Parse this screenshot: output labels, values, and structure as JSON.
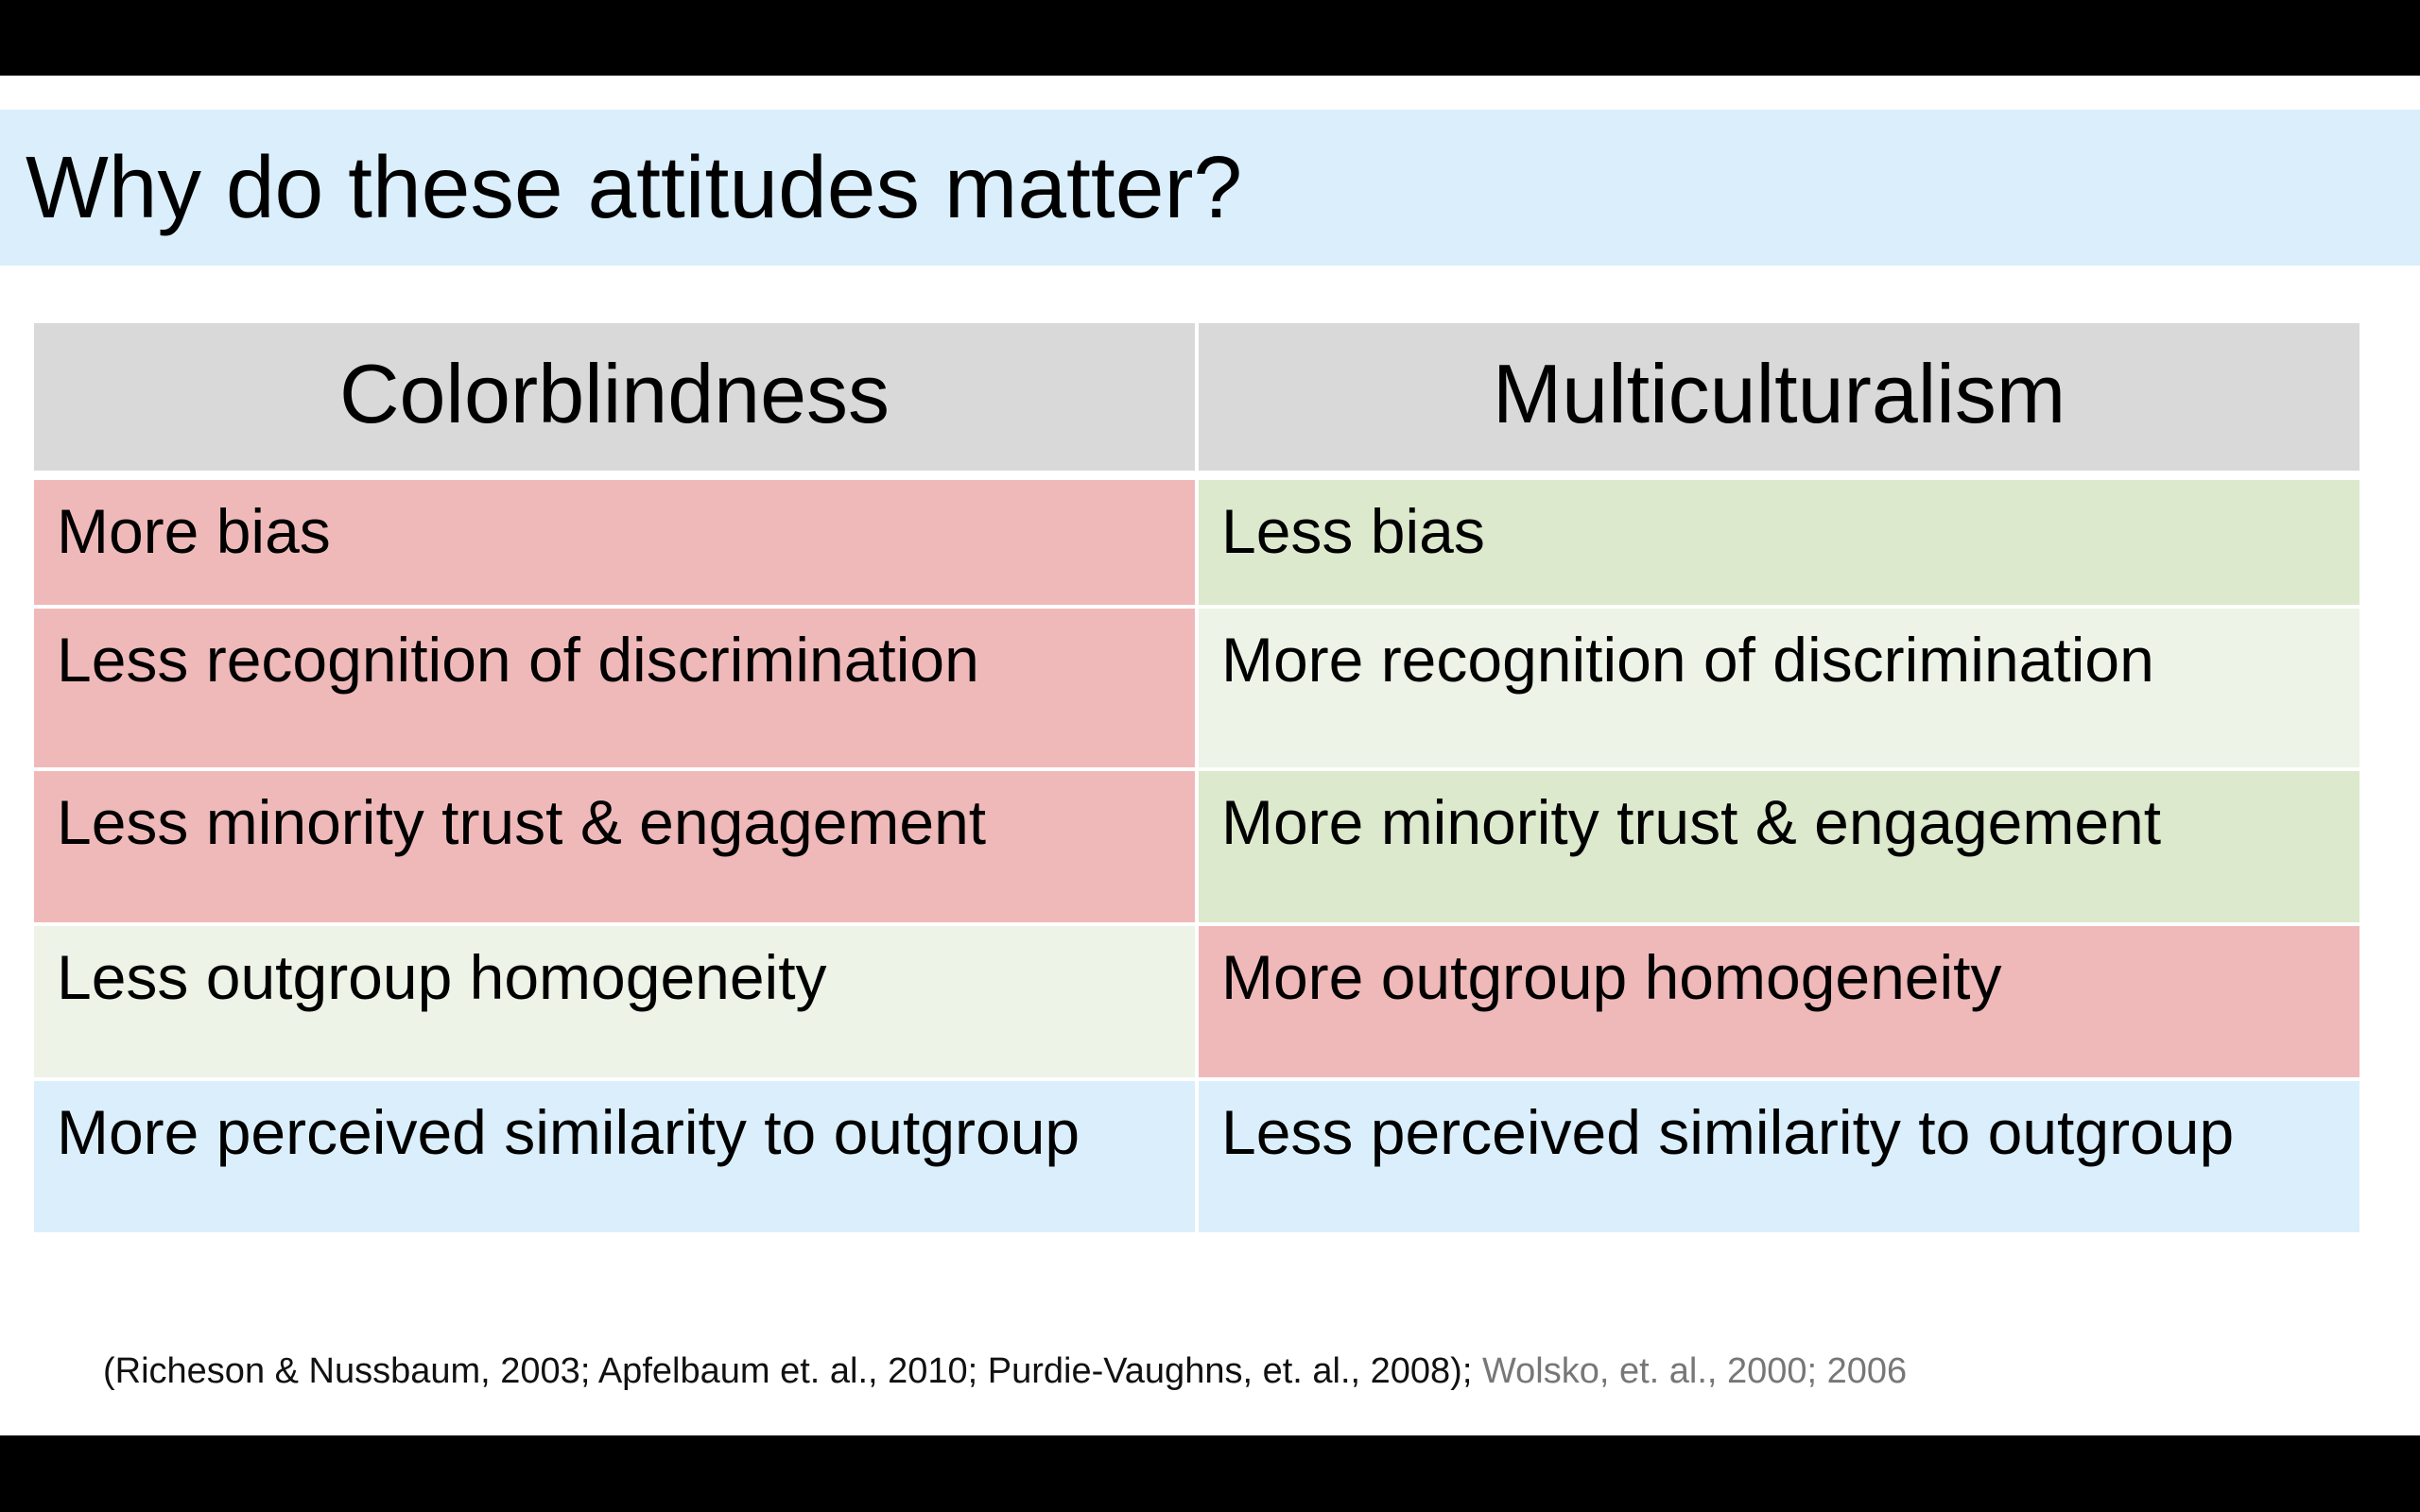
{
  "slide": {
    "title": "Why do these attitudes matter?"
  },
  "table": {
    "headers": [
      "Colorblindness",
      "Multiculturalism"
    ],
    "rows": [
      [
        "More bias",
        "Less bias"
      ],
      [
        "Less recognition of discrimination",
        "More recognition of discrimination"
      ],
      [
        "Less minority trust & engagement",
        "More minority trust & engagement"
      ],
      [
        "Less outgroup homogeneity",
        "More outgroup homogeneity"
      ],
      [
        "More perceived similarity to outgroup",
        "Less perceived similarity to outgroup"
      ]
    ]
  },
  "colors": {
    "title_band": "#daeffb",
    "header": "#d9d9d9",
    "negative": "#f0b9b9",
    "positive": "#dce9cc",
    "pale_positive": "#edf3e6",
    "neutral_blue": "#daeffb"
  },
  "footnote": {
    "main": "(Richeson & Nussbaum, 2003; Apfelbaum et. al., 2010; Purdie-Vaughns, et. al., 2008);",
    "secondary": " Wolsko, et. al., 2000; 2006"
  }
}
